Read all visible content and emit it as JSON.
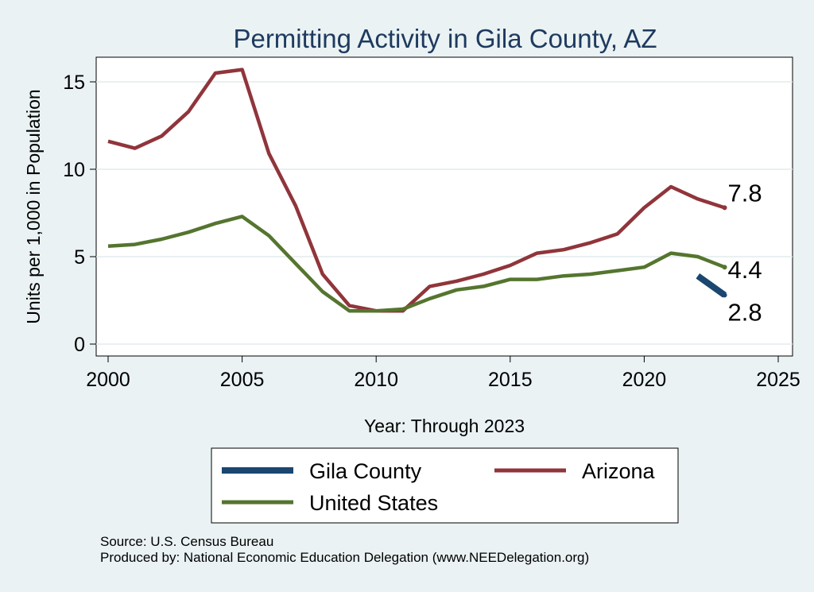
{
  "chart_data": {
    "type": "line",
    "title": "Permitting Activity in Gila County, AZ",
    "xlabel": "Year: Through 2023",
    "ylabel": "Units per 1,000 in Population",
    "xlim": [
      2000,
      2025
    ],
    "ylim": [
      -0.5,
      16.5
    ],
    "xticks": [
      2000,
      2005,
      2010,
      2015,
      2020,
      2025
    ],
    "yticks": [
      0,
      5,
      10,
      15
    ],
    "grid": true,
    "legend_position": "bottom",
    "series": [
      {
        "name": "Gila County",
        "color": "#1a4670",
        "x": [
          2022,
          2023
        ],
        "values": [
          3.9,
          2.8
        ],
        "end_label": "2.8"
      },
      {
        "name": "Arizona",
        "color": "#90353b",
        "x": [
          2000,
          2001,
          2002,
          2003,
          2004,
          2005,
          2006,
          2007,
          2008,
          2009,
          2010,
          2011,
          2012,
          2013,
          2014,
          2015,
          2016,
          2017,
          2018,
          2019,
          2020,
          2021,
          2022,
          2023
        ],
        "values": [
          11.6,
          11.2,
          11.9,
          13.3,
          15.5,
          15.7,
          10.9,
          7.9,
          4.0,
          2.2,
          1.9,
          1.9,
          3.3,
          3.6,
          4.0,
          4.5,
          5.2,
          5.4,
          5.8,
          6.3,
          7.8,
          9.0,
          8.3,
          7.8
        ],
        "end_label": "7.8"
      },
      {
        "name": "United States",
        "color": "#55752f",
        "x": [
          2000,
          2001,
          2002,
          2003,
          2004,
          2005,
          2006,
          2007,
          2008,
          2009,
          2010,
          2011,
          2012,
          2013,
          2014,
          2015,
          2016,
          2017,
          2018,
          2019,
          2020,
          2021,
          2022,
          2023
        ],
        "values": [
          5.6,
          5.7,
          6.0,
          6.4,
          6.9,
          7.3,
          6.2,
          4.6,
          3.0,
          1.9,
          1.9,
          2.0,
          2.6,
          3.1,
          3.3,
          3.7,
          3.7,
          3.9,
          4.0,
          4.2,
          4.4,
          5.2,
          5.0,
          4.4
        ],
        "end_label": "4.4"
      }
    ],
    "legend": [
      "Gila County",
      "Arizona",
      "United States"
    ],
    "footnotes": [
      "Source: U.S. Census Bureau",
      "Produced by: National Economic Education Delegation (www.NEEDelegation.org)"
    ]
  }
}
